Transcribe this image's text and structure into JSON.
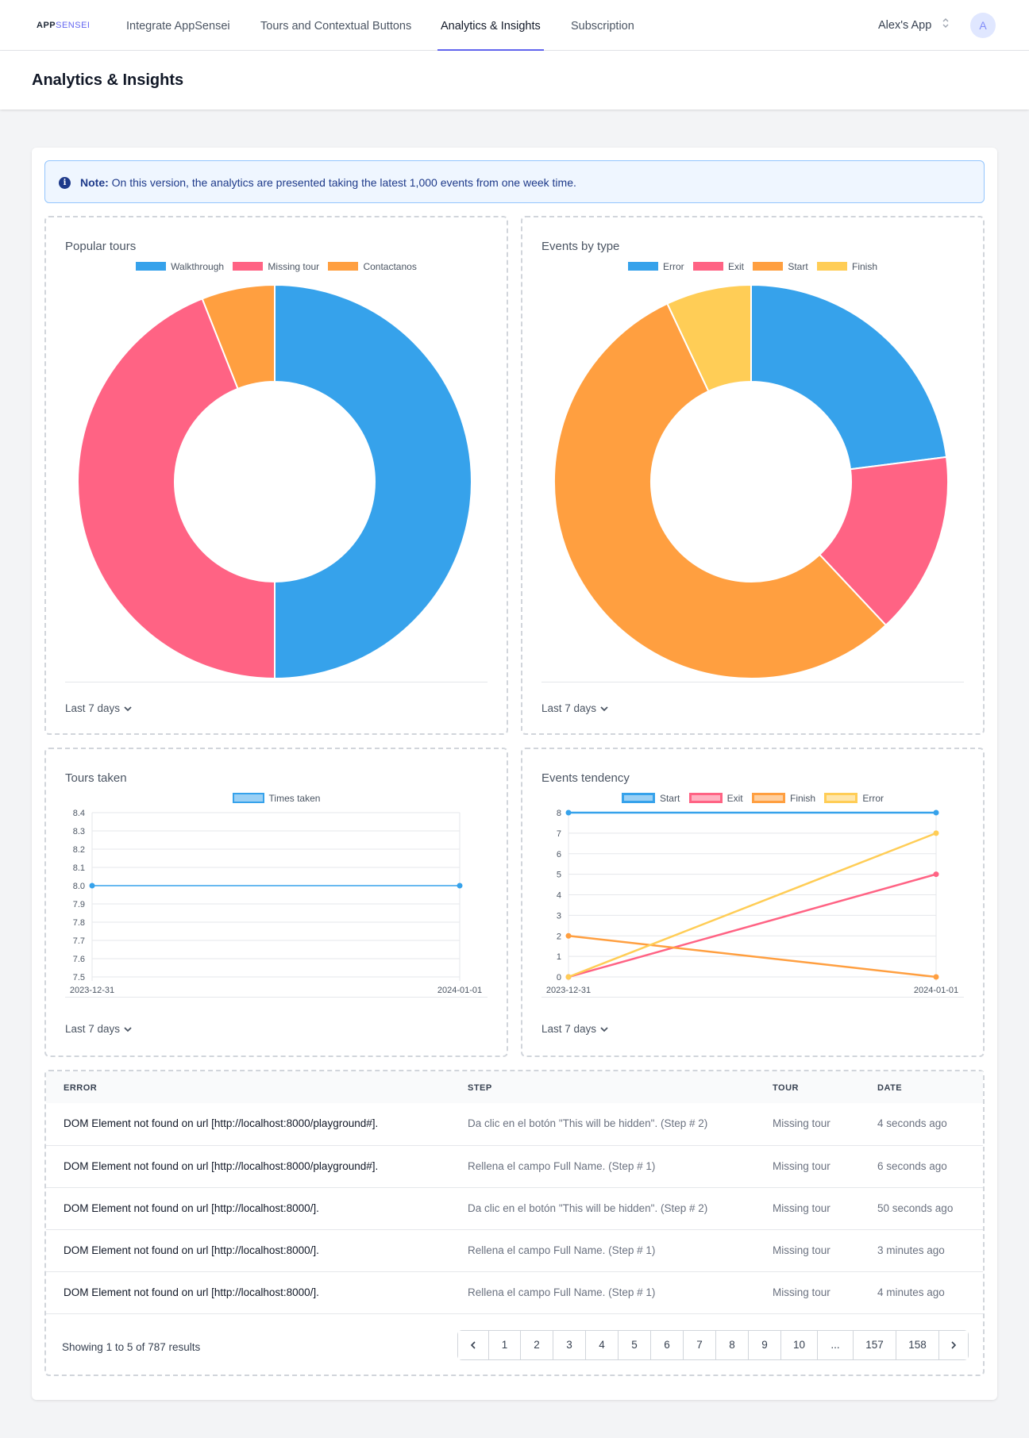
{
  "app": {
    "logo_main": "APP",
    "logo_accent": "SENSEI",
    "tabs": [
      {
        "label": "Integrate AppSensei"
      },
      {
        "label": "Tours and Contextual Buttons"
      },
      {
        "label": "Analytics & Insights",
        "active": true
      },
      {
        "label": "Subscription"
      }
    ],
    "app_selector": "Alex's App",
    "avatar_initial": "A"
  },
  "page": {
    "title": "Analytics & Insights"
  },
  "note": {
    "label": "Note:",
    "text": "On this version, the analytics are presented taking the latest 1,000 events from one week time."
  },
  "colors": {
    "blue": "#36a2eb",
    "pink": "#ff6384",
    "orange": "#ff9f40",
    "yellow": "#ffcd56",
    "accent": "#6366f1"
  },
  "panels": {
    "popular_tours": {
      "title": "Popular tours",
      "period": "Last 7 days"
    },
    "events_by_type": {
      "title": "Events by type",
      "period": "Last 7 days"
    },
    "tours_taken": {
      "title": "Tours taken",
      "period": "Last 7 days"
    },
    "events_tendency": {
      "title": "Events tendency",
      "period": "Last 7 days"
    }
  },
  "chart_data": [
    {
      "type": "pie",
      "title": "Popular tours",
      "legend_position": "top",
      "categories": [
        "Walkthrough",
        "Missing tour",
        "Contactanos"
      ],
      "values": [
        50,
        44,
        6
      ],
      "colors": [
        "#36a2eb",
        "#ff6384",
        "#ff9f40"
      ]
    },
    {
      "type": "pie",
      "title": "Events by type",
      "legend_position": "top",
      "categories": [
        "Error",
        "Exit",
        "Start",
        "Finish"
      ],
      "values": [
        23,
        15,
        55,
        7
      ],
      "colors": [
        "#36a2eb",
        "#ff6384",
        "#ff9f40",
        "#ffcd56"
      ]
    },
    {
      "type": "line",
      "title": "Tours taken",
      "legend_position": "top",
      "x": [
        "2023-12-31",
        "2024-01-01"
      ],
      "series": [
        {
          "name": "Times taken",
          "values": [
            8,
            8
          ],
          "color": "#36a2eb"
        }
      ],
      "ylim": [
        7.5,
        8.4
      ],
      "yticks": [
        "8.4",
        "8.3",
        "8.2",
        "8.1",
        "8.0",
        "7.9",
        "7.8",
        "7.7",
        "7.6",
        "7.5"
      ],
      "grid": true
    },
    {
      "type": "line",
      "title": "Events tendency",
      "legend_position": "top",
      "x": [
        "2023-12-31",
        "2024-01-01"
      ],
      "series": [
        {
          "name": "Start",
          "values": [
            8,
            8
          ],
          "color": "#36a2eb"
        },
        {
          "name": "Exit",
          "values": [
            0,
            5
          ],
          "color": "#ff6384"
        },
        {
          "name": "Finish",
          "values": [
            2,
            0
          ],
          "color": "#ff9f40"
        },
        {
          "name": "Error",
          "values": [
            0,
            7
          ],
          "color": "#ffcd56"
        }
      ],
      "ylim": [
        0,
        8
      ],
      "yticks": [
        "8",
        "7",
        "6",
        "5",
        "4",
        "3",
        "2",
        "1",
        "0"
      ],
      "grid": true
    }
  ],
  "table": {
    "headers": {
      "error": "ERROR",
      "step": "STEP",
      "tour": "TOUR",
      "date": "DATE"
    },
    "rows": [
      {
        "error": "DOM Element not found on url [http://localhost:8000/playground#].",
        "step": "Da clic en el botón \"This will be hidden\". (Step # 2)",
        "tour": "Missing tour",
        "date": "4 seconds ago"
      },
      {
        "error": "DOM Element not found on url [http://localhost:8000/playground#].",
        "step": "Rellena el campo Full Name. (Step # 1)",
        "tour": "Missing tour",
        "date": "6 seconds ago"
      },
      {
        "error": "DOM Element not found on url [http://localhost:8000/].",
        "step": "Da clic en el botón \"This will be hidden\". (Step # 2)",
        "tour": "Missing tour",
        "date": "50 seconds ago"
      },
      {
        "error": "DOM Element not found on url [http://localhost:8000/].",
        "step": "Rellena el campo Full Name. (Step # 1)",
        "tour": "Missing tour",
        "date": "3 minutes ago"
      },
      {
        "error": "DOM Element not found on url [http://localhost:8000/].",
        "step": "Rellena el campo Full Name. (Step # 1)",
        "tour": "Missing tour",
        "date": "4 minutes ago"
      }
    ]
  },
  "pagination": {
    "showing_prefix": "Showing",
    "from": "1",
    "to_word": "to",
    "to": "5",
    "of_word": "of",
    "total": "787",
    "results_word": "results",
    "pages": [
      "1",
      "2",
      "3",
      "4",
      "5",
      "6",
      "7",
      "8",
      "9",
      "10",
      "...",
      "157",
      "158"
    ]
  }
}
